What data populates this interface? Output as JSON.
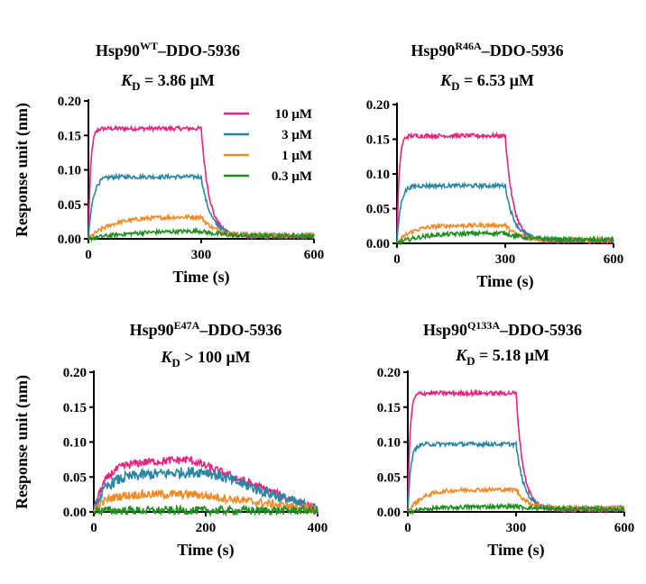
{
  "chart_data": [
    {
      "type": "line",
      "title_parts": {
        "base": "Hsp90",
        "sup": "WT",
        "rest": "–DDO-5936"
      },
      "kd_label": {
        "k": "K",
        "sub": "D",
        "rest": " = 3.86 μM"
      },
      "xlabel": "Time (s)",
      "ylabel": "Response unit (nm)",
      "xlim": [
        0,
        600
      ],
      "ylim": [
        0,
        0.2
      ],
      "xticks": [
        "0",
        "300",
        "600"
      ],
      "yticks": [
        "0.00",
        "0.05",
        "0.10",
        "0.15",
        "0.20"
      ],
      "legend": "top-right",
      "series": [
        {
          "name": "10 μM",
          "color": "#e8247f",
          "plateau": 0.16,
          "end": 0.003,
          "noise": 0.003,
          "tau_on": 6,
          "tau_off": 22
        },
        {
          "name": "3 μM",
          "color": "#2a86a6",
          "plateau": 0.09,
          "end": 0.005,
          "noise": 0.003,
          "tau_on": 12,
          "tau_off": 25
        },
        {
          "name": "1 μM",
          "color": "#f08a24",
          "plateau": 0.032,
          "end": 0.005,
          "noise": 0.003,
          "tau_on": 60,
          "tau_off": 35
        },
        {
          "name": "0.3 μM",
          "color": "#1f8f1f",
          "plateau": 0.012,
          "end": 0.004,
          "noise": 0.003,
          "tau_on": 110,
          "tau_off": 50
        }
      ]
    },
    {
      "type": "line",
      "title_parts": {
        "base": "Hsp90",
        "sup": "R46A",
        "rest": "–DDO-5936"
      },
      "kd_label": {
        "k": "K",
        "sub": "D",
        "rest": " = 6.53 μM"
      },
      "xlabel": "Time (s)",
      "ylabel": "",
      "xlim": [
        0,
        600
      ],
      "ylim": [
        0,
        0.2
      ],
      "xticks": [
        "0",
        "300",
        "600"
      ],
      "yticks": [
        "0.00",
        "0.05",
        "0.10",
        "0.15",
        "0.20"
      ],
      "series": [
        {
          "color": "#e8247f",
          "plateau": 0.155,
          "end": 0.003,
          "noise": 0.003,
          "tau_on": 6,
          "tau_off": 22
        },
        {
          "color": "#2a86a6",
          "plateau": 0.083,
          "end": 0.005,
          "noise": 0.003,
          "tau_on": 10,
          "tau_off": 25
        },
        {
          "color": "#f08a24",
          "plateau": 0.026,
          "end": 0.005,
          "noise": 0.003,
          "tau_on": 40,
          "tau_off": 35
        },
        {
          "color": "#1f8f1f",
          "plateau": 0.015,
          "end": 0.005,
          "noise": 0.003,
          "tau_on": 70,
          "tau_off": 50
        }
      ]
    },
    {
      "type": "line",
      "title_parts": {
        "base": "Hsp90",
        "sup": "E47A",
        "rest": "–DDO-5936"
      },
      "kd_label": {
        "k": "K",
        "sub": "D",
        "rest": " > 100 μM"
      },
      "xlabel": "Time (s)",
      "ylabel": "Response unit (nm)",
      "xlim": [
        0,
        400
      ],
      "ylim": [
        0,
        0.2
      ],
      "xticks": [
        "0",
        "200",
        "400"
      ],
      "yticks": [
        "0.00",
        "0.05",
        "0.10",
        "0.15",
        "0.20"
      ],
      "series": [
        {
          "color": "#e8247f",
          "shape": "slow",
          "plateau": 0.068,
          "peak_t": 170,
          "peak": 0.075,
          "end": 0.003,
          "noise": 0.006
        },
        {
          "color": "#2a86a6",
          "shape": "slow",
          "plateau": 0.05,
          "peak_t": 200,
          "peak": 0.058,
          "end": 0.003,
          "noise": 0.008
        },
        {
          "color": "#f08a24",
          "shape": "slow",
          "plateau": 0.025,
          "peak_t": 180,
          "peak": 0.025,
          "end": 0.003,
          "noise": 0.006
        },
        {
          "color": "#1f8f1f",
          "shape": "flat",
          "plateau": 0.002,
          "end": 0.002,
          "noise": 0.006
        }
      ]
    },
    {
      "type": "line",
      "title_parts": {
        "base": "Hsp90",
        "sup": "Q133A",
        "rest": "–DDO-5936"
      },
      "kd_label": {
        "k": "K",
        "sub": "D",
        "rest": " = 5.18 μM"
      },
      "xlabel": "Time (s)",
      "ylabel": "",
      "xlim": [
        0,
        600
      ],
      "ylim": [
        0,
        0.2
      ],
      "xticks": [
        "0",
        "300",
        "600"
      ],
      "yticks": [
        "0.00",
        "0.05",
        "0.10",
        "0.15",
        "0.20"
      ],
      "series": [
        {
          "color": "#e8247f",
          "plateau": 0.17,
          "end": 0.003,
          "noise": 0.003,
          "tau_on": 6,
          "tau_off": 20
        },
        {
          "color": "#2a86a6",
          "plateau": 0.097,
          "end": 0.005,
          "noise": 0.003,
          "tau_on": 8,
          "tau_off": 22
        },
        {
          "color": "#f08a24",
          "plateau": 0.032,
          "end": 0.005,
          "noise": 0.003,
          "tau_on": 40,
          "tau_off": 30
        },
        {
          "color": "#1f8f1f",
          "plateau": 0.008,
          "end": 0.004,
          "noise": 0.003,
          "tau_on": 80,
          "tau_off": 50
        }
      ]
    }
  ]
}
